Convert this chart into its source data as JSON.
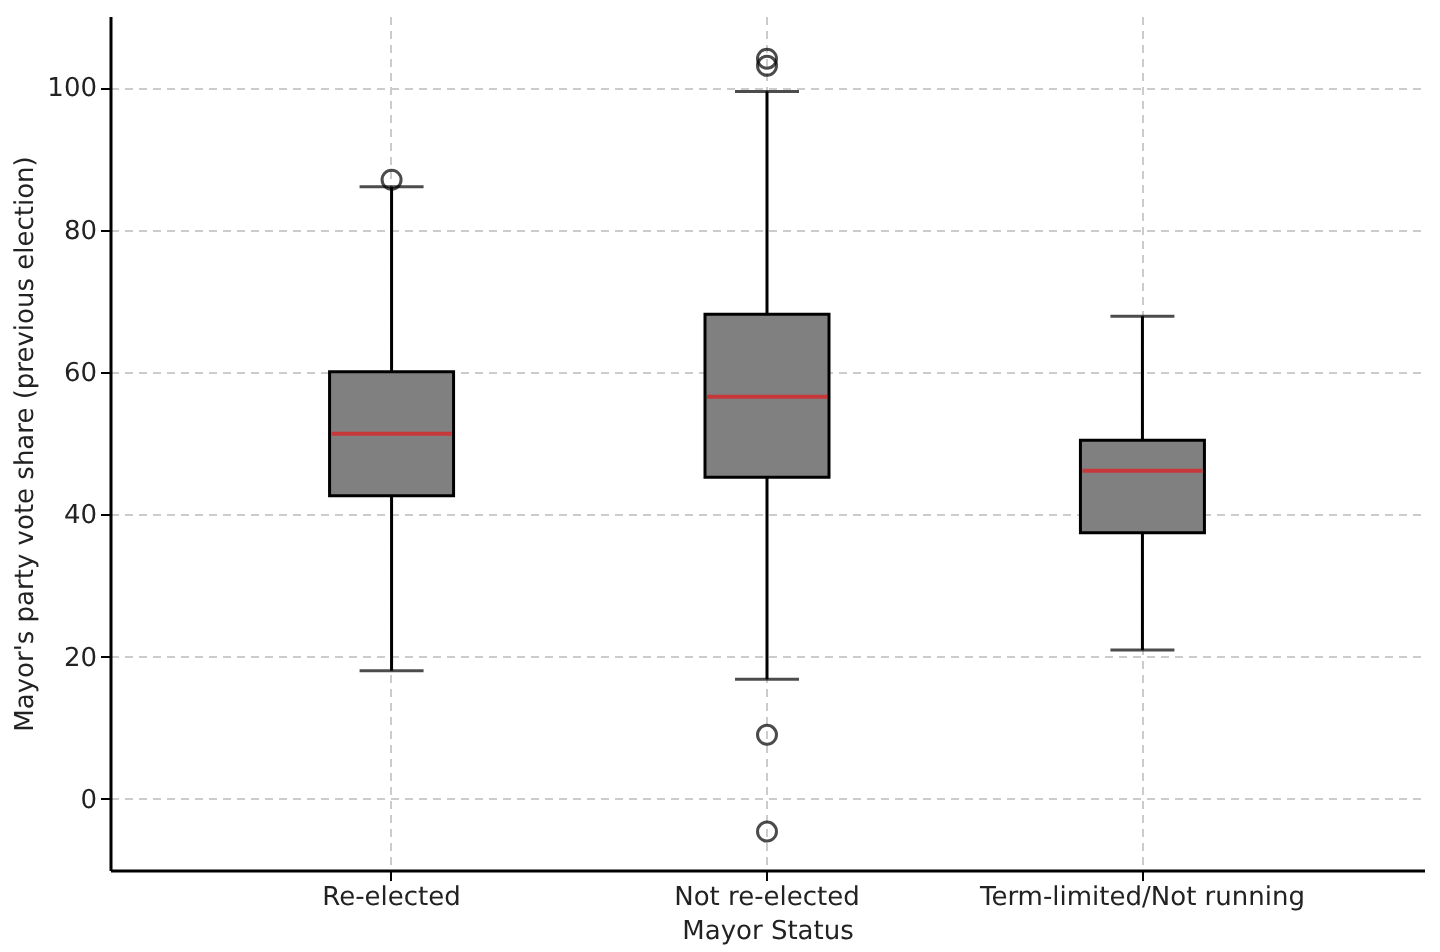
{
  "chart_data": {
    "type": "box",
    "xlabel": "Mayor Status",
    "ylabel": "Mayor's party vote share (previous election)",
    "categories": [
      "Re-elected",
      "Not re-elected",
      "Term-limited/Not running"
    ],
    "boxes": [
      {
        "low": 18,
        "q1": 42.6,
        "median": 51.3,
        "q3": 60,
        "high": 86,
        "outliers": [
          87
        ]
      },
      {
        "low": 16.8,
        "q1": 45.2,
        "median": 56.5,
        "q3": 68.1,
        "high": 99.4,
        "outliers": [
          104,
          103,
          9,
          -4.6
        ]
      },
      {
        "low": 20.9,
        "q1": 37.4,
        "median": 46.1,
        "q3": 50.4,
        "high": 67.8
      }
    ],
    "color": "#808080",
    "ylim": [
      -10,
      110
    ],
    "yticks": [
      0,
      20,
      40,
      60,
      80,
      100
    ],
    "grid": true,
    "marker": "circle"
  }
}
